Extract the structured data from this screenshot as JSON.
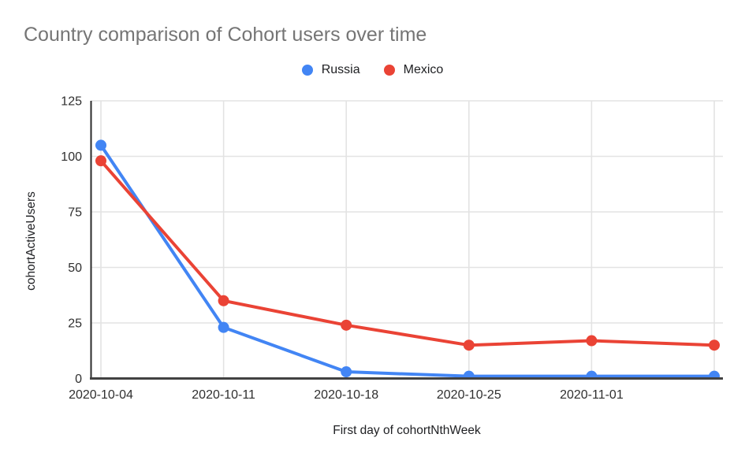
{
  "title": "Country comparison of Cohort users over time",
  "chart_data": {
    "type": "line",
    "title": "Country comparison of Cohort users over time",
    "xlabel": "First day of cohortNthWeek",
    "ylabel": "cohortActiveUsers",
    "categories": [
      "2020-10-04",
      "2020-10-11",
      "2020-10-18",
      "2020-10-25",
      "2020-11-01",
      ""
    ],
    "series": [
      {
        "name": "Russia",
        "color": "#4285f4",
        "values": [
          105,
          23,
          3,
          1,
          1,
          1
        ]
      },
      {
        "name": "Mexico",
        "color": "#ea4335",
        "values": [
          98,
          35,
          24,
          15,
          17,
          15
        ]
      }
    ],
    "yticks": [
      0,
      25,
      50,
      75,
      100,
      125
    ],
    "ylim": [
      0,
      125
    ],
    "grid": true,
    "legend_position": "top",
    "colors": {
      "gridline": "#e3e3e3",
      "y_axis": "#2b2b2b",
      "x_axis": "#424242",
      "tick_text": "#2f2f2f",
      "title_text": "#757575"
    }
  }
}
